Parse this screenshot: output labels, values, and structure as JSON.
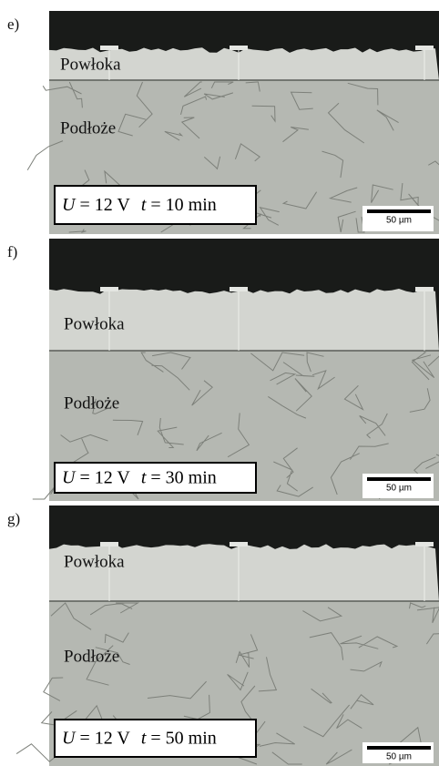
{
  "panels": [
    {
      "label": "e)",
      "coating": "Powłoka",
      "substrate": "Podłoże",
      "condition": {
        "var1": "U",
        "eq1": "= 12 V",
        "var2": "t",
        "eq2": "= 10 min"
      },
      "scale": "50 µm"
    },
    {
      "label": "f)",
      "coating": "Powłoka",
      "substrate": "Podłoże",
      "condition": {
        "var1": "U",
        "eq1": "= 12 V",
        "var2": "t",
        "eq2": "= 30 min"
      },
      "scale": "50 µm"
    },
    {
      "label": "g)",
      "coating": "Powłoka",
      "substrate": "Podłoże",
      "condition": {
        "var1": "U",
        "eq1": "= 12 V",
        "var2": "t",
        "eq2": "= 50 min"
      },
      "scale": "50 µm"
    }
  ]
}
